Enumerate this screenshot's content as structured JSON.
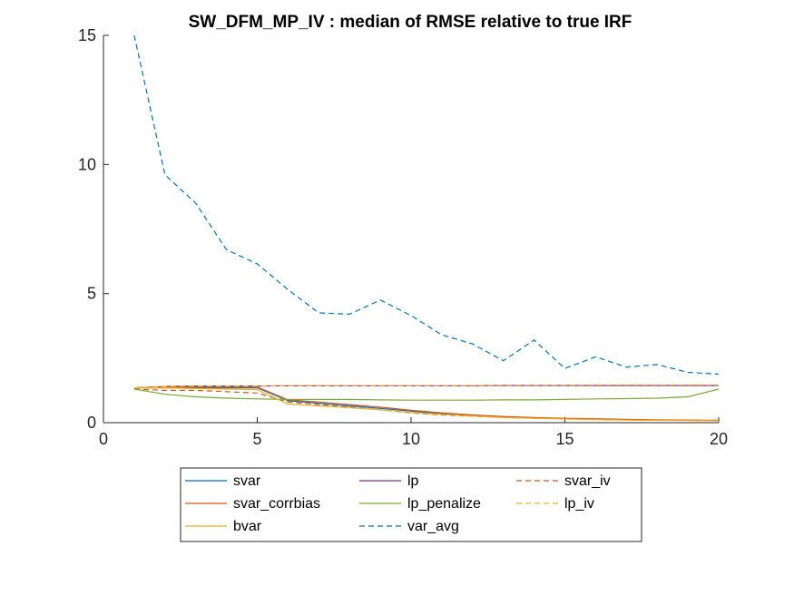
{
  "chart_data": {
    "type": "line",
    "title": "SW_DFM_MP_IV : median of RMSE relative to true IRF",
    "xlabel": "",
    "ylabel": "",
    "xlim": [
      0,
      20
    ],
    "ylim": [
      0,
      15
    ],
    "xticks": [
      0,
      5,
      10,
      15,
      20
    ],
    "yticks": [
      0,
      5,
      10,
      15
    ],
    "grid": false,
    "legend_placement": "bottom-outside",
    "x": [
      1,
      2,
      3,
      4,
      5,
      6,
      7,
      8,
      9,
      10,
      11,
      12,
      13,
      14,
      15,
      16,
      17,
      18,
      19,
      20
    ],
    "series": [
      {
        "name": "svar",
        "color": "#0072BD",
        "dash": "solid",
        "values": [
          1.35,
          1.35,
          1.35,
          1.35,
          1.35,
          0.85,
          0.75,
          0.65,
          0.55,
          0.45,
          0.35,
          0.28,
          0.22,
          0.18,
          0.15,
          0.13,
          0.11,
          0.1,
          0.09,
          0.08
        ]
      },
      {
        "name": "lp",
        "color": "#7E2F8E",
        "dash": "solid",
        "values": [
          1.35,
          1.4,
          1.42,
          1.42,
          1.42,
          1.43,
          1.43,
          1.43,
          1.43,
          1.43,
          1.43,
          1.43,
          1.44,
          1.44,
          1.44,
          1.44,
          1.44,
          1.44,
          1.44,
          1.44
        ]
      },
      {
        "name": "svar_iv",
        "color": "#D95319",
        "dash": "dashed",
        "values": [
          1.3,
          1.25,
          1.25,
          1.2,
          1.15,
          0.8,
          0.7,
          0.6,
          0.5,
          0.38,
          0.3,
          0.25,
          0.2,
          0.17,
          0.15,
          0.13,
          0.11,
          0.1,
          0.09,
          0.08
        ]
      },
      {
        "name": "svar_corrbias",
        "color": "#D95319",
        "dash": "solid",
        "values": [
          1.35,
          1.38,
          1.38,
          1.38,
          1.38,
          0.88,
          0.8,
          0.7,
          0.6,
          0.48,
          0.38,
          0.3,
          0.24,
          0.2,
          0.17,
          0.15,
          0.13,
          0.11,
          0.1,
          0.09
        ]
      },
      {
        "name": "lp_penalize",
        "color": "#77AC30",
        "dash": "solid",
        "values": [
          1.3,
          1.1,
          1.0,
          0.95,
          0.92,
          0.9,
          0.9,
          0.9,
          0.88,
          0.87,
          0.87,
          0.87,
          0.88,
          0.88,
          0.9,
          0.92,
          0.93,
          0.95,
          1.0,
          1.3
        ]
      },
      {
        "name": "lp_iv",
        "color": "#EDB120",
        "dash": "dashed",
        "values": [
          1.35,
          1.4,
          1.42,
          1.42,
          1.42,
          1.43,
          1.43,
          1.43,
          1.43,
          1.43,
          1.43,
          1.44,
          1.45,
          1.45,
          1.45,
          1.46,
          1.46,
          1.46,
          1.46,
          1.46
        ]
      },
      {
        "name": "bvar",
        "color": "#EDB120",
        "dash": "solid",
        "values": [
          1.35,
          1.35,
          1.32,
          1.3,
          1.28,
          0.72,
          0.65,
          0.58,
          0.5,
          0.4,
          0.32,
          0.26,
          0.2,
          0.17,
          0.14,
          0.12,
          0.1,
          0.09,
          0.08,
          0.07
        ]
      },
      {
        "name": "var_avg",
        "color": "#0072BD",
        "dash": "dashed",
        "values": [
          15.0,
          9.6,
          8.5,
          6.7,
          6.15,
          5.15,
          4.25,
          4.2,
          4.75,
          4.15,
          3.4,
          3.05,
          2.4,
          3.2,
          2.1,
          2.55,
          2.15,
          2.25,
          1.95,
          1.88
        ]
      }
    ],
    "legend": {
      "columns": [
        [
          "svar",
          "svar_corrbias",
          "bvar"
        ],
        [
          "lp",
          "lp_penalize",
          "var_avg"
        ],
        [
          "svar_iv",
          "lp_iv"
        ]
      ]
    }
  }
}
